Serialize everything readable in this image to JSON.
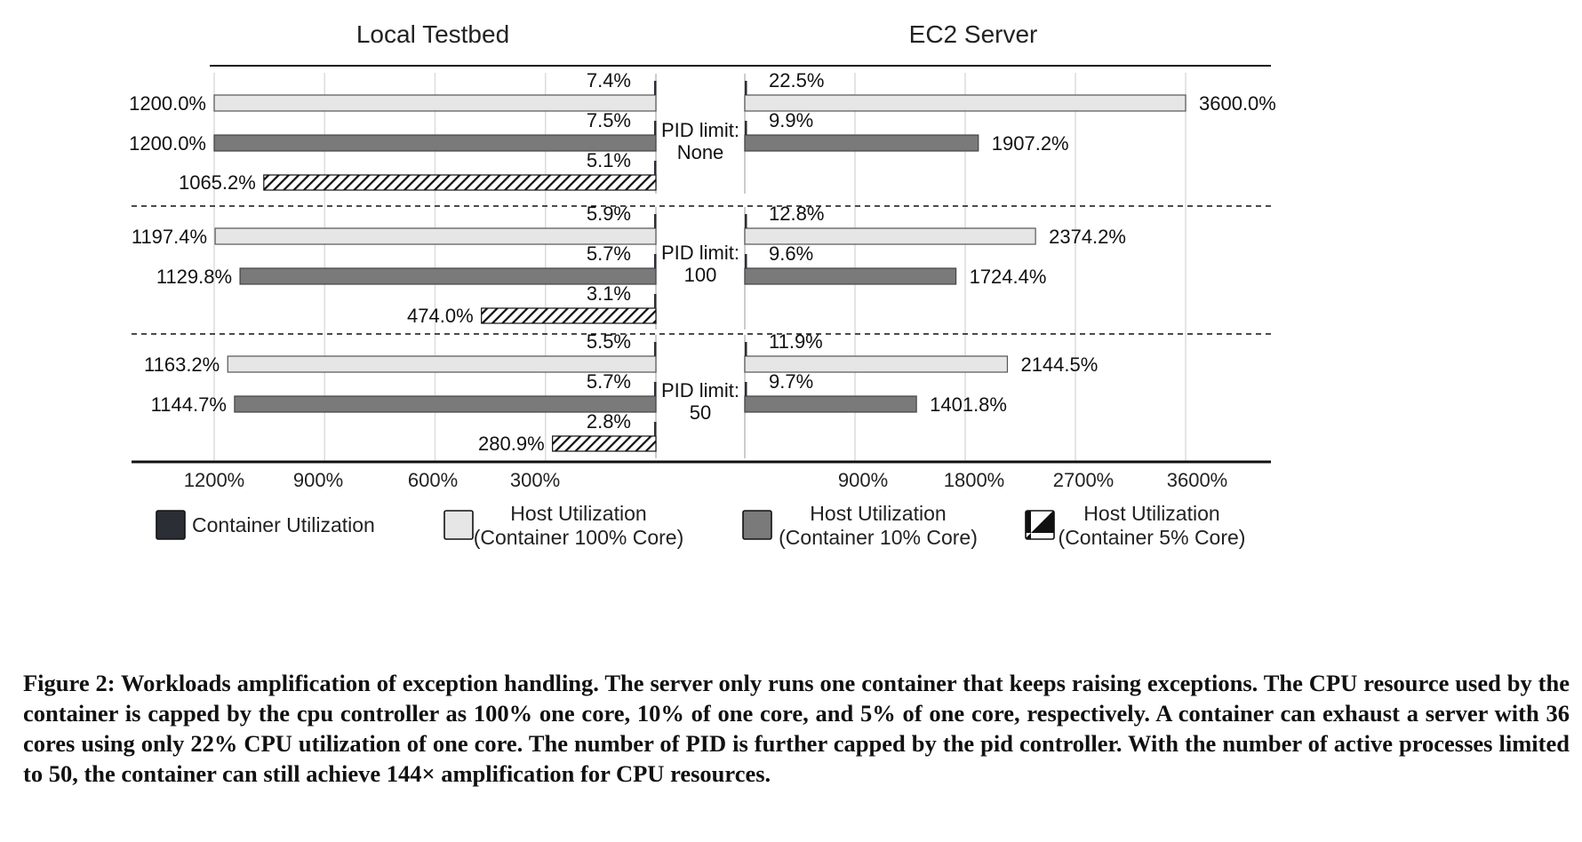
{
  "chart_data": {
    "type": "bar",
    "orientation": "horizontal",
    "panels": [
      {
        "title": "Local Testbed",
        "axis_ticks": [
          "1200%",
          "900%",
          "600%",
          "300%"
        ],
        "xlim": [
          0,
          1200
        ],
        "direction": "reversed",
        "groups": [
          {
            "series": [
              {
                "series": "Host Utilization (Container 100% Core)",
                "container_label": "7.4%",
                "host": 1200.0,
                "host_label": "1200.0%"
              },
              {
                "series": "Host Utilization (Container 10% Core)",
                "container_label": "7.5%",
                "host": 1200.0,
                "host_label": "1200.0%"
              },
              {
                "series": "Host Utilization (Container 5% Core)",
                "container_label": "5.1%",
                "host": 1065.2,
                "host_label": "1065.2%"
              }
            ]
          },
          {
            "series": [
              {
                "series": "Host Utilization (Container 100% Core)",
                "container_label": "5.9%",
                "host": 1197.4,
                "host_label": "1197.4%"
              },
              {
                "series": "Host Utilization (Container 10% Core)",
                "container_label": "5.7%",
                "host": 1129.8,
                "host_label": "1129.8%"
              },
              {
                "series": "Host Utilization (Container 5% Core)",
                "container_label": "3.1%",
                "host": 474.0,
                "host_label": "474.0%"
              }
            ]
          },
          {
            "series": [
              {
                "series": "Host Utilization (Container 100% Core)",
                "container_label": "5.5%",
                "host": 1163.2,
                "host_label": "1163.2%"
              },
              {
                "series": "Host Utilization (Container 10% Core)",
                "container_label": "5.7%",
                "host": 1144.7,
                "host_label": "1144.7%"
              },
              {
                "series": "Host Utilization (Container 5% Core)",
                "container_label": "2.8%",
                "host": 280.9,
                "host_label": "280.9%"
              }
            ]
          }
        ]
      },
      {
        "title": "EC2 Server",
        "axis_ticks": [
          "900%",
          "1800%",
          "2700%",
          "3600%"
        ],
        "xlim": [
          0,
          3600
        ],
        "direction": "normal",
        "groups": [
          {
            "series": [
              {
                "series": "Host Utilization (Container 100% Core)",
                "container_label": "22.5%",
                "host": 3600.0,
                "host_label": "3600.0%"
              },
              {
                "series": "Host Utilization (Container 10% Core)",
                "container_label": "9.9%",
                "host": 1907.2,
                "host_label": "1907.2%"
              }
            ]
          },
          {
            "series": [
              {
                "series": "Host Utilization (Container 100% Core)",
                "container_label": "12.8%",
                "host": 2374.2,
                "host_label": "2374.2%"
              },
              {
                "series": "Host Utilization (Container 10% Core)",
                "container_label": "9.6%",
                "host": 1724.4,
                "host_label": "1724.4%"
              }
            ]
          },
          {
            "series": [
              {
                "series": "Host Utilization (Container 100% Core)",
                "container_label": "11.9%",
                "host": 2144.5,
                "host_label": "2144.5%"
              },
              {
                "series": "Host Utilization (Container 10% Core)",
                "container_label": "9.7%",
                "host": 1401.8,
                "host_label": "1401.8%"
              }
            ]
          }
        ]
      }
    ],
    "group_labels": [
      [
        "PID limit:",
        "None"
      ],
      [
        "PID limit:",
        "100"
      ],
      [
        "PID limit:",
        "50"
      ]
    ],
    "legend": [
      {
        "label": "Container Utilization",
        "style": "dark",
        "color": "#2b2e35"
      },
      {
        "label": [
          "Host Utilization",
          "(Container 100% Core)"
        ],
        "style": "light",
        "color": "#e6e6e6"
      },
      {
        "label": [
          "Host Utilization",
          "(Container 10% Core)"
        ],
        "style": "medium",
        "color": "#7a7a7a"
      },
      {
        "label": [
          "Host Utilization",
          "(Container 5% Core)"
        ],
        "style": "hatch",
        "color": "#111111"
      }
    ],
    "grid": true,
    "legend_placement": "bottom"
  },
  "caption": "Figure 2: Workloads amplification of exception handling. The server only runs one container that keeps raising exceptions. The CPU resource used by the container is capped by the cpu controller as 100% one core, 10% of one core, and 5% of one core, respectively. A container can exhaust a server with 36 cores using only 22% CPU utilization of one core. The number of PID is further capped by the pid controller. With the number of active processes limited to 50, the container can still achieve 144× amplification for CPU resources."
}
